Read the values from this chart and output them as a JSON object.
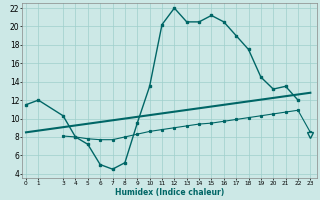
{
  "xlabel": "Humidex (Indice chaleur)",
  "bg_color": "#cce8e6",
  "grid_color": "#9fcfcc",
  "line_color": "#006666",
  "xlim": [
    -0.3,
    23.5
  ],
  "ylim": [
    3.5,
    22.5
  ],
  "y_ticks": [
    4,
    6,
    8,
    10,
    12,
    14,
    16,
    18,
    20,
    22
  ],
  "x_ticks": [
    0,
    1,
    3,
    4,
    5,
    6,
    7,
    8,
    9,
    10,
    11,
    12,
    13,
    14,
    15,
    16,
    17,
    18,
    19,
    20,
    21,
    22,
    23
  ],
  "curve1_x": [
    0,
    1,
    3,
    4,
    5,
    6,
    7,
    8,
    9,
    10,
    11,
    12,
    13,
    14,
    15,
    16,
    17,
    18,
    19,
    20,
    21,
    22,
    23
  ],
  "curve1_y": [
    11.5,
    12.0,
    10.3,
    8.0,
    7.2,
    5.0,
    4.5,
    5.2,
    9.5,
    13.5,
    20.2,
    22.0,
    20.5,
    20.5,
    21.2,
    20.5,
    19.0,
    17.5,
    14.5,
    13.2,
    13.5,
    12.0,
    8.2
  ],
  "curve2_x": [
    3,
    4,
    5,
    6,
    7,
    8,
    9,
    10,
    11,
    12,
    13,
    14,
    15,
    16,
    17,
    18,
    19,
    20,
    21,
    22,
    23
  ],
  "curve2_y": [
    8.1,
    8.0,
    7.8,
    7.7,
    7.7,
    8.0,
    8.3,
    8.6,
    8.8,
    9.0,
    9.2,
    9.4,
    9.5,
    9.7,
    9.9,
    10.1,
    10.3,
    10.5,
    10.7,
    10.9,
    8.5
  ],
  "curve3_x": [
    0,
    23
  ],
  "curve3_y": [
    8.5,
    12.8
  ]
}
